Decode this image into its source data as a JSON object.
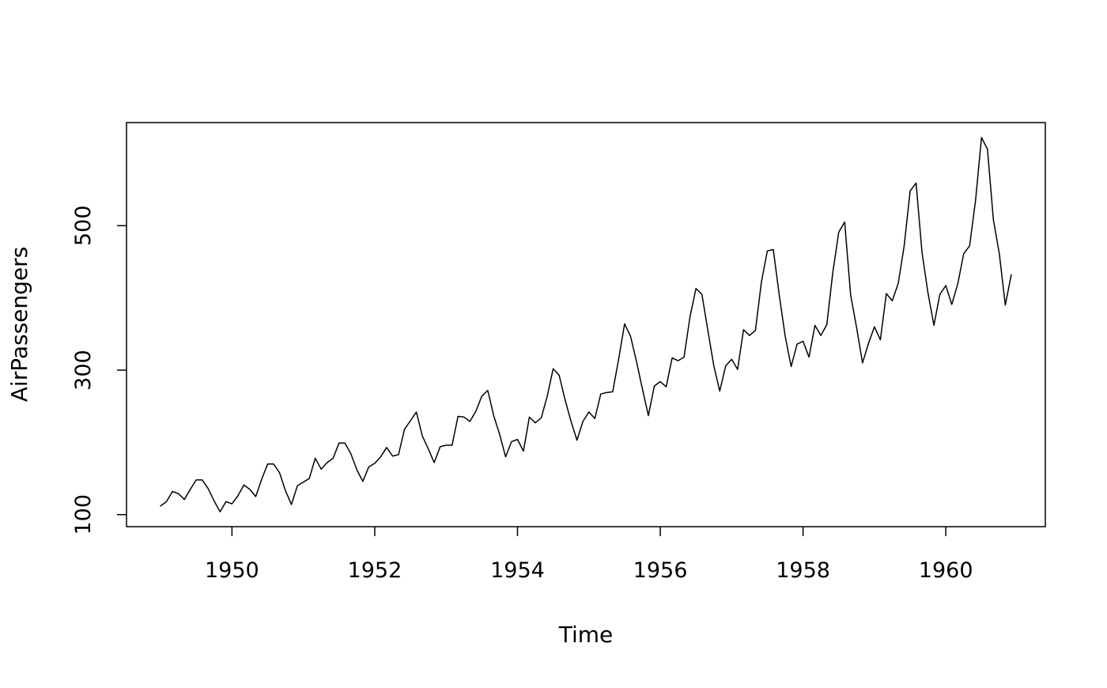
{
  "chart_data": {
    "type": "line",
    "title": "",
    "xlabel": "Time",
    "ylabel": "AirPassengers",
    "x_start": 1949,
    "frequency": 12,
    "x_ticks": [
      1950,
      1952,
      1954,
      1956,
      1958,
      1960
    ],
    "y_ticks": [
      100,
      300,
      500
    ],
    "xlim": [
      1948.523,
      1961.394
    ],
    "ylim": [
      83.3,
      642.7
    ],
    "line_color": "#000000",
    "background": "#ffffff",
    "series": [
      {
        "name": "AirPassengers",
        "values": [
          112,
          118,
          132,
          129,
          121,
          135,
          148,
          148,
          136,
          119,
          104,
          118,
          115,
          126,
          141,
          135,
          125,
          149,
          170,
          170,
          158,
          133,
          114,
          140,
          145,
          150,
          178,
          163,
          172,
          178,
          199,
          199,
          184,
          162,
          146,
          166,
          171,
          180,
          193,
          181,
          183,
          218,
          230,
          242,
          209,
          191,
          172,
          194,
          196,
          196,
          236,
          235,
          229,
          243,
          264,
          272,
          237,
          211,
          180,
          201,
          204,
          188,
          235,
          227,
          234,
          264,
          302,
          293,
          259,
          229,
          203,
          229,
          242,
          233,
          267,
          269,
          270,
          315,
          364,
          347,
          312,
          274,
          237,
          278,
          284,
          277,
          317,
          313,
          318,
          374,
          413,
          405,
          355,
          306,
          271,
          306,
          315,
          301,
          356,
          348,
          355,
          422,
          465,
          467,
          404,
          347,
          305,
          336,
          340,
          318,
          362,
          348,
          363,
          435,
          491,
          505,
          404,
          359,
          310,
          337,
          360,
          342,
          406,
          396,
          420,
          472,
          548,
          559,
          463,
          407,
          362,
          405,
          417,
          391,
          419,
          461,
          472,
          535,
          622,
          606,
          508,
          461,
          390,
          432
        ]
      }
    ]
  }
}
